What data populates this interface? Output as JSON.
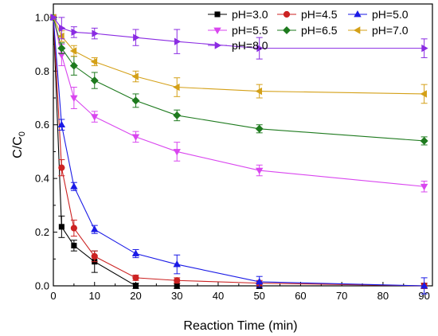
{
  "chart_data": {
    "type": "line",
    "title": "",
    "xlabel": "Reaction Time (min)",
    "ylabel_main": "C/C",
    "ylabel_sub": "0",
    "xlim": [
      0,
      92
    ],
    "ylim": [
      0,
      1.05
    ],
    "xticks": [
      0,
      10,
      20,
      30,
      40,
      50,
      60,
      70,
      80,
      90
    ],
    "yticks": [
      0.0,
      0.2,
      0.4,
      0.6,
      0.8,
      1.0
    ],
    "ytick_labels": [
      "0.0",
      "0.2",
      "0.4",
      "0.6",
      "0.8",
      "1.0"
    ],
    "grid": false,
    "legend_position": "top-right",
    "x": [
      0,
      2,
      5,
      10,
      20,
      30,
      50,
      90
    ],
    "series": [
      {
        "name": "pH=3.0",
        "color": "#000000",
        "marker": "square",
        "values": [
          1.0,
          0.22,
          0.15,
          0.09,
          0.0,
          0.0,
          0.0,
          0.0
        ],
        "errors": [
          0,
          0.04,
          0.02,
          0.04,
          0.01,
          0.01,
          0.01,
          0.01
        ]
      },
      {
        "name": "pH=4.5",
        "color": "#cc2222",
        "marker": "circle",
        "values": [
          1.0,
          0.44,
          0.215,
          0.11,
          0.03,
          0.02,
          0.01,
          0.0
        ],
        "errors": [
          0,
          0.03,
          0.03,
          0.02,
          0.01,
          0.01,
          0.01,
          0.01
        ]
      },
      {
        "name": "pH=5.0",
        "color": "#1a1ae6",
        "marker": "triangle-up",
        "values": [
          1.0,
          0.6,
          0.37,
          0.21,
          0.12,
          0.08,
          0.015,
          0.0
        ],
        "errors": [
          0,
          0.02,
          0.015,
          0.015,
          0.015,
          0.035,
          0.02,
          0.03
        ]
      },
      {
        "name": "pH=5.5",
        "color": "#d946ef",
        "marker": "triangle-down",
        "values": [
          1.0,
          0.86,
          0.7,
          0.63,
          0.555,
          0.5,
          0.43,
          0.37
        ],
        "errors": [
          0,
          0.04,
          0.04,
          0.02,
          0.02,
          0.035,
          0.02,
          0.02
        ]
      },
      {
        "name": "pH=6.5",
        "color": "#1e7a1e",
        "marker": "diamond",
        "values": [
          1.0,
          0.885,
          0.82,
          0.765,
          0.69,
          0.635,
          0.585,
          0.54
        ],
        "errors": [
          0,
          0.02,
          0.035,
          0.03,
          0.025,
          0.02,
          0.015,
          0.015
        ]
      },
      {
        "name": "pH=7.0",
        "color": "#d4a017",
        "marker": "triangle-left",
        "values": [
          1.0,
          0.93,
          0.875,
          0.835,
          0.78,
          0.74,
          0.725,
          0.715
        ],
        "errors": [
          0,
          0.02,
          0.02,
          0.015,
          0.02,
          0.035,
          0.025,
          0.035
        ]
      },
      {
        "name": "pH=8.0",
        "color": "#8a2be2",
        "marker": "triangle-right",
        "values": [
          1.0,
          0.96,
          0.945,
          0.94,
          0.925,
          0.91,
          0.885,
          0.885
        ],
        "errors": [
          0,
          0.04,
          0.02,
          0.02,
          0.03,
          0.045,
          0.04,
          0.035
        ]
      }
    ]
  }
}
